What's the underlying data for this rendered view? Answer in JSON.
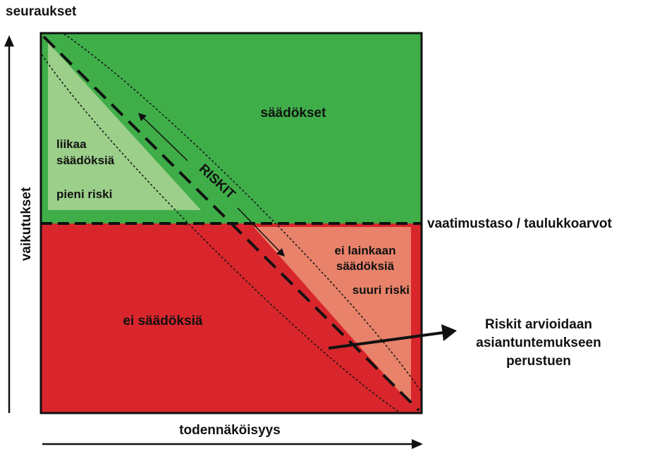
{
  "axes": {
    "y_top_label": "seuraukset",
    "y_side_label": "vaikutukset",
    "x_label": "todennäköisyys"
  },
  "threshold_label": "vaatimustaso / taulukkoarvot",
  "regions": {
    "upper": "säädökset",
    "lower": "ei säädöksiä",
    "left_triangle": {
      "line1": "liikaa",
      "line2": "säädöksiä",
      "line3": "pieni riski"
    },
    "right_triangle": {
      "line1": "ei lainkaan",
      "line2": "säädöksiä",
      "line3": "suuri riski"
    }
  },
  "risk_band_label": "RISKIT",
  "callout": {
    "line1": "Riskit arvioidaan",
    "line2": "asiantuntemukseen",
    "line3": "perustuen"
  },
  "colors": {
    "upper_green": "#3fae49",
    "light_green": "#9ccf8a",
    "lower_red": "#d8262c",
    "salmon": "#e8826a"
  }
}
